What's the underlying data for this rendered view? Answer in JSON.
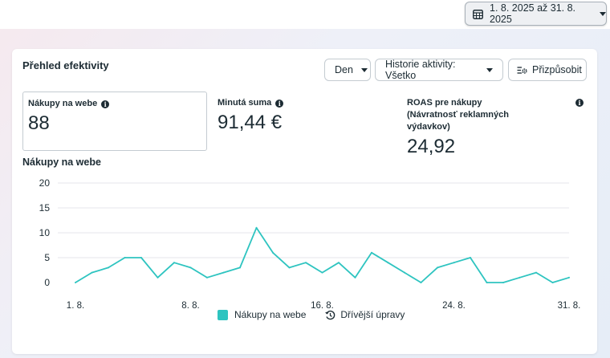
{
  "date_range": {
    "label": "1. 8. 2025 až 31. 8. 2025"
  },
  "card": {
    "title": "Přehled efektivity",
    "granularity_label": "Den",
    "history_label": "Historie aktivity: Všetko",
    "customize_label": "Přizpůsobit"
  },
  "metrics": [
    {
      "label": "Nákupy na webe",
      "value": "88"
    },
    {
      "label": "Minutá suma",
      "value": "91,44 €"
    },
    {
      "label": "ROAS pre nákupy (Návratnosť reklamných výdavkov)",
      "value": "24,92"
    }
  ],
  "chart_section_title": "Nákupy na webe",
  "legend": {
    "series_label": "Nákupy na webe",
    "history_label": "Dřívější úpravy"
  },
  "colors": {
    "series": "#2ec4c0",
    "grid": "#e4e6eb",
    "text": "#1c2b33"
  },
  "chart_data": {
    "type": "line",
    "x": [
      1,
      2,
      3,
      4,
      5,
      6,
      7,
      8,
      9,
      10,
      11,
      12,
      13,
      14,
      15,
      16,
      17,
      18,
      19,
      20,
      21,
      22,
      23,
      24,
      25,
      26,
      27,
      28,
      29,
      30,
      31
    ],
    "x_tick_values": [
      1,
      8,
      16,
      24,
      31
    ],
    "x_tick_labels": [
      "1. 8.",
      "8. 8.",
      "16. 8.",
      "24. 8.",
      "31. 8."
    ],
    "y_ticks": [
      0,
      5,
      10,
      15,
      20
    ],
    "ylim": [
      0,
      20
    ],
    "grid": true,
    "legend_position": "bottom",
    "series": [
      {
        "name": "Nákupy na webe",
        "values": [
          0,
          2,
          3,
          5,
          5,
          1,
          4,
          3,
          1,
          2,
          3,
          11,
          6,
          3,
          4,
          2,
          4,
          1,
          6,
          4,
          2,
          0,
          3,
          4,
          5,
          0,
          0,
          1,
          2,
          0,
          1
        ]
      }
    ]
  }
}
